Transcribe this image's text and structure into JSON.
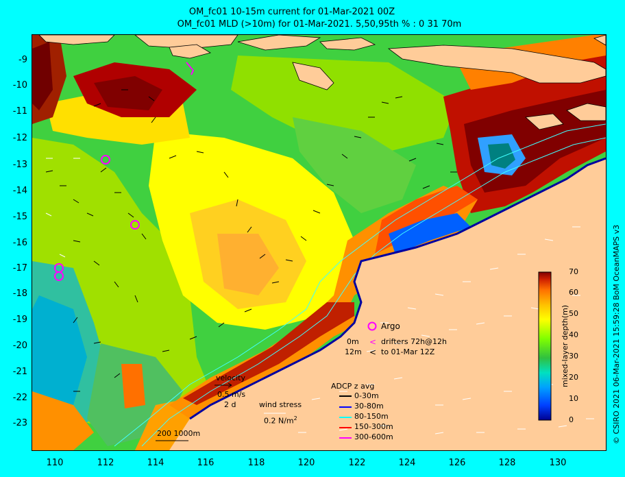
{
  "header": {
    "line1": "OM_fc01 10-15m current for 01-Mar-2021 00Z",
    "line2": "OM_fc01 MLD (>10m) for 01-Mar-2021. 5,50,95th % : 0  31  70m"
  },
  "axes": {
    "y_labels": [
      "-9",
      "-10",
      "-11",
      "-12",
      "-13",
      "-14",
      "-15",
      "-16",
      "-17",
      "-18",
      "-19",
      "-20",
      "-21",
      "-22",
      "-23"
    ],
    "x_labels": [
      "110",
      "112",
      "114",
      "116",
      "118",
      "120",
      "122",
      "124",
      "126",
      "128",
      "130"
    ],
    "x_range": [
      109,
      132
    ],
    "y_range": [
      -24.1,
      -8.3
    ]
  },
  "colorbar": {
    "title": "mixed-layer depth(m)",
    "ticks": [
      "0",
      "10",
      "20",
      "30",
      "40",
      "50",
      "60",
      "70"
    ],
    "colors": [
      "#000090",
      "#0040ff",
      "#00a0ff",
      "#00e0c0",
      "#30c040",
      "#80ff00",
      "#ffff00",
      "#ffc000",
      "#ff7000",
      "#d02000",
      "#800000"
    ]
  },
  "legend": {
    "argo": "Argo",
    "drifter_depth_0": "0m",
    "drifter_depth_12": "12m",
    "drifter_desc_1": "drifters 72h@12h",
    "drifter_desc_2": "to 01-Mar 12Z",
    "velocity_title": "velocity",
    "velocity_scale": "0.5 m/s",
    "velocity_days": "2 d",
    "wind_title": "wind stress",
    "wind_scale": "0.2 N/m",
    "wind_exp": "2",
    "adcp_title": "ADCP z avg",
    "adcp_items": [
      {
        "label": "0-30m",
        "color": "#000000"
      },
      {
        "label": "30-80m",
        "color": "#0000ff"
      },
      {
        "label": "80-150m",
        "color": "#00ffff"
      },
      {
        "label": "150-300m",
        "color": "#ff0000"
      },
      {
        "label": "300-600m",
        "color": "#ff00ff"
      }
    ],
    "scale_label": "200  1000m"
  },
  "credit": "© CSIRO 2021   06-Mar-2021 15:59:28 BoM OceanMAPS v3",
  "argo_floats": [
    {
      "lon": 112.0,
      "lat": -12.8
    },
    {
      "lon": 113.2,
      "lat": -15.3
    },
    {
      "lon": 110.1,
      "lat": -16.9
    },
    {
      "lon": 110.1,
      "lat": -17.3
    }
  ]
}
